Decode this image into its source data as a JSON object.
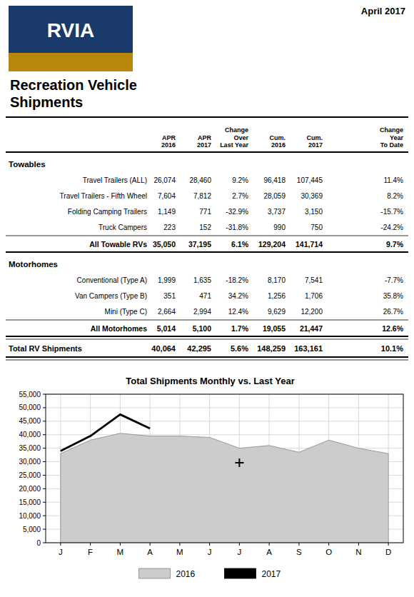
{
  "chart_data": [
    {
      "type": "table",
      "title": "Recreation Vehicle\nShipments",
      "annotations": [
        "RVIA",
        "April 2017"
      ],
      "columns": [
        "APR\n2016",
        "APR\n2017",
        "Change\nOver\nLast Year",
        "Cum.\n2016",
        "Cum.\n2017",
        "Change\nYear\nTo Date"
      ],
      "sections": [
        {
          "name": "Towables",
          "rows": [
            [
              "Travel Trailers (ALL)",
              "26,074",
              "28,460",
              "9.2%",
              "96,418",
              "107,445",
              "11.4%"
            ],
            [
              "Travel Trailers - Fifth Wheel",
              "7,604",
              "7,812",
              "2.7%",
              "28,059",
              "30,369",
              "8.2%"
            ],
            [
              "Folding Camping Trailers",
              "1,149",
              "771",
              "-32.9%",
              "3,737",
              "3,150",
              "-15.7%"
            ],
            [
              "Truck Campers",
              "223",
              "152",
              "-31.8%",
              "990",
              "750",
              "-24.2%"
            ]
          ],
          "total": [
            "All Towable RVs",
            "35,050",
            "37,195",
            "6.1%",
            "129,204",
            "141,714",
            "9.7%"
          ]
        },
        {
          "name": "Motorhomes",
          "rows": [
            [
              "Conventional (Type A)",
              "1,999",
              "1,635",
              "-18.2%",
              "8,170",
              "7,541",
              "-7.7%"
            ],
            [
              "Van Campers (Type B)",
              "351",
              "471",
              "34.2%",
              "1,256",
              "1,706",
              "35.8%"
            ],
            [
              "Mini (Type C)",
              "2,664",
              "2,994",
              "12.4%",
              "9,629",
              "12,200",
              "26.7%"
            ]
          ],
          "total": [
            "All Motorhomes",
            "5,014",
            "5,100",
            "1.7%",
            "19,055",
            "21,447",
            "12.6%"
          ]
        }
      ],
      "total_row": [
        "Total RV Shipments",
        "40,064",
        "42,295",
        "5.6%",
        "148,259",
        "163,161",
        "10.1%"
      ]
    },
    {
      "type": "line",
      "title": "Total Shipments Monthly vs. Last Year",
      "categories": [
        "J",
        "F",
        "M",
        "A",
        "M",
        "J",
        "J",
        "A",
        "S",
        "O",
        "N",
        "D"
      ],
      "series": [
        {
          "name": "2016",
          "type": "area",
          "color": "#cccccc",
          "values": [
            33000,
            38000,
            40500,
            39500,
            39500,
            39000,
            35000,
            36000,
            33500,
            38000,
            35000,
            33000
          ]
        },
        {
          "name": "2017",
          "type": "line",
          "color": "#000000",
          "values": [
            34000,
            39500,
            47500,
            42295,
            null,
            null,
            null,
            null,
            null,
            null,
            null,
            null
          ]
        },
        {
          "type": "scatter",
          "marker": "plus",
          "color": "#000000",
          "values": [
            null,
            null,
            null,
            null,
            null,
            null,
            29600,
            null,
            null,
            null,
            null,
            null
          ]
        }
      ],
      "ylim": [
        0,
        55000
      ],
      "yticks": [
        0,
        {
          "value": 5000,
          "label": "5,000"
        },
        {
          "value": 10000,
          "label": "10,000"
        },
        {
          "value": 15000,
          "label": "15,000"
        },
        {
          "value": 20000,
          "label": "20,000"
        },
        {
          "value": 25000,
          "label": "25,000"
        },
        {
          "value": 30000,
          "label": "30,000"
        },
        {
          "value": 35000,
          "label": "35,000"
        },
        {
          "value": 40000,
          "label": "40,000"
        },
        {
          "value": 45000,
          "label": "45,000"
        },
        {
          "value": 50000,
          "label": "50,000"
        },
        {
          "value": 55000,
          "label": "55,000"
        }
      ],
      "grid": true,
      "legend": "bottom"
    }
  ]
}
